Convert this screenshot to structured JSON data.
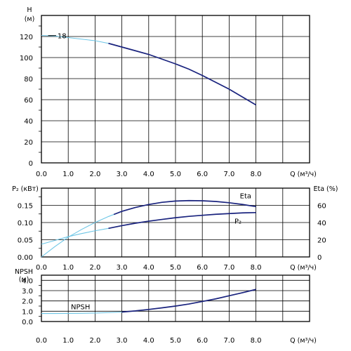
{
  "chart_data": [
    {
      "type": "line",
      "xlabel": "Q (м³/ч)",
      "ylabel": "H",
      "ylabel_unit": "(м)",
      "xlim": [
        0,
        10
      ],
      "ylim": [
        0,
        140
      ],
      "x_ticks": [
        "0.0",
        "1.0",
        "2.0",
        "3.0",
        "4.0",
        "5.0",
        "6.0",
        "7.0",
        "8.0"
      ],
      "y_ticks": [
        "0",
        "20",
        "40",
        "60",
        "80",
        "100",
        "120"
      ],
      "grid": true,
      "series": [
        {
          "name": "18",
          "color": "#1a237e",
          "light_color": "#6ec6e6",
          "x": [
            0,
            0.5,
            1.0,
            1.5,
            2.0,
            2.5,
            3.0,
            3.5,
            4.0,
            4.5,
            5.0,
            5.5,
            6.0,
            6.5,
            7.0,
            7.5,
            8.0
          ],
          "y": [
            121,
            120.5,
            119,
            117.5,
            116,
            113.5,
            110,
            106.5,
            103,
            98.5,
            94,
            89,
            83,
            76.5,
            70,
            62.5,
            55
          ],
          "dark_range": [
            2.5,
            8.0
          ]
        }
      ]
    },
    {
      "type": "line",
      "xlabel": "Q (м³/ч)",
      "ylabel": "P₂ (кВт)",
      "y2label": "Eta (%)",
      "xlim": [
        0,
        10
      ],
      "ylim": [
        0,
        0.2
      ],
      "y2lim": [
        0,
        80
      ],
      "x_ticks": [
        "0.0",
        "1.0",
        "2.0",
        "3.0",
        "4.0",
        "5.0",
        "6.0",
        "7.0",
        "8.0"
      ],
      "y_ticks": [
        "0.00",
        "0.05",
        "0.10",
        "0.15"
      ],
      "y2_ticks": [
        "0",
        "20",
        "40",
        "60"
      ],
      "grid": true,
      "series": [
        {
          "name": "Eta",
          "axis": "right",
          "color": "#1a237e",
          "light_color": "#6ec6e6",
          "x": [
            0,
            0.5,
            1.0,
            1.5,
            2.0,
            2.5,
            3.0,
            3.5,
            4.0,
            4.5,
            5.0,
            5.5,
            6.0,
            6.5,
            7.0,
            7.5,
            8.0
          ],
          "y": [
            0,
            12,
            23,
            32,
            40,
            47,
            53,
            57.5,
            61,
            63.5,
            65,
            65.5,
            65.3,
            64.5,
            63,
            61,
            58.5
          ],
          "dark_range": [
            2.7,
            8.0
          ]
        },
        {
          "name": "P₂",
          "axis": "left",
          "color": "#1a237e",
          "light_color": "#6ec6e6",
          "x": [
            0,
            0.5,
            1.0,
            1.5,
            2.0,
            2.5,
            3.0,
            3.5,
            4.0,
            4.5,
            5.0,
            5.5,
            6.0,
            6.5,
            7.0,
            7.5,
            8.0
          ],
          "y": [
            0.037,
            0.048,
            0.059,
            0.068,
            0.076,
            0.083,
            0.091,
            0.098,
            0.104,
            0.109,
            0.114,
            0.118,
            0.121,
            0.124,
            0.126,
            0.128,
            0.129
          ],
          "dark_range": [
            2.5,
            8.0
          ]
        }
      ]
    },
    {
      "type": "line",
      "xlabel": "Q (м³/ч)",
      "ylabel": "NPSH",
      "ylabel_unit": "(м)",
      "xlim": [
        0,
        10
      ],
      "ylim": [
        0,
        4.5
      ],
      "x_ticks": [
        "0.0",
        "1.0",
        "2.0",
        "3.0",
        "4.0",
        "5.0",
        "6.0",
        "7.0",
        "8.0"
      ],
      "y_ticks": [
        "0.0",
        "1.0",
        "2.0",
        "3.0",
        "4.0"
      ],
      "grid": true,
      "series": [
        {
          "name": "NPSH",
          "color": "#1a237e",
          "light_color": "#6ec6e6",
          "x": [
            0,
            0.5,
            1.0,
            1.5,
            2.0,
            2.5,
            3.0,
            3.5,
            4.0,
            4.5,
            5.0,
            5.5,
            6.0,
            6.5,
            7.0,
            7.5,
            8.0
          ],
          "y": [
            0.78,
            0.78,
            0.79,
            0.8,
            0.82,
            0.86,
            0.92,
            1.03,
            1.17,
            1.33,
            1.5,
            1.7,
            1.95,
            2.2,
            2.5,
            2.8,
            3.12
          ],
          "dark_range": [
            3.0,
            8.0
          ]
        }
      ]
    }
  ]
}
